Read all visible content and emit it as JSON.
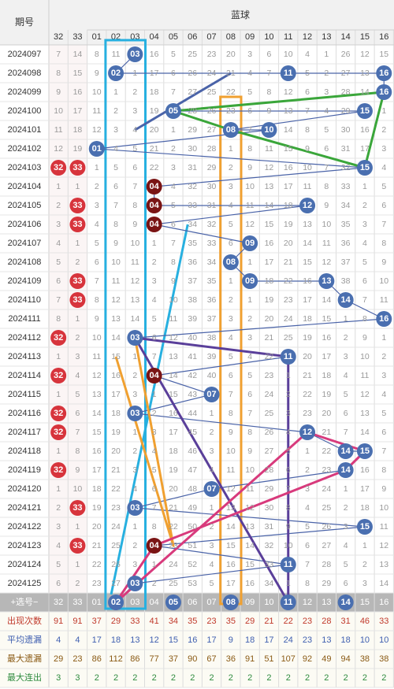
{
  "header": {
    "period_label": "期号",
    "blue_label": "蓝球",
    "columns": [
      "32",
      "33",
      "01",
      "02",
      "03",
      "04",
      "05",
      "06",
      "07",
      "08",
      "09",
      "10",
      "11",
      "12",
      "13",
      "14",
      "15",
      "16"
    ]
  },
  "chart_data": {
    "type": "table",
    "title": "",
    "highlighted_columns": [
      "32",
      "33"
    ],
    "rows": [
      {
        "period": "2024097",
        "cells": [
          "7",
          "14",
          "8",
          "11",
          "03",
          "16",
          "5",
          "25",
          "23",
          "20",
          "3",
          "6",
          "10",
          "4",
          "1",
          "26",
          "12",
          "15"
        ]
      },
      {
        "period": "2024098",
        "cells": [
          "8",
          "15",
          "9",
          "02",
          "1",
          "17",
          "6",
          "26",
          "24",
          "21",
          "4",
          "7",
          "11",
          "5",
          "2",
          "27",
          "13",
          "16"
        ]
      },
      {
        "period": "2024099",
        "cells": [
          "9",
          "16",
          "10",
          "1",
          "2",
          "18",
          "7",
          "27",
          "25",
          "22",
          "5",
          "8",
          "12",
          "6",
          "3",
          "28",
          "14",
          "16"
        ]
      },
      {
        "period": "2024100",
        "cells": [
          "10",
          "17",
          "11",
          "2",
          "3",
          "19",
          "05",
          "28",
          "26",
          "23",
          "6",
          "9",
          "13",
          "7",
          "4",
          "29",
          "15",
          "1"
        ]
      },
      {
        "period": "2024101",
        "cells": [
          "11",
          "18",
          "12",
          "3",
          "4",
          "20",
          "1",
          "29",
          "27",
          "08",
          "7",
          "10",
          "14",
          "8",
          "5",
          "30",
          "16",
          "2"
        ]
      },
      {
        "period": "2024102",
        "cells": [
          "12",
          "19",
          "01",
          "4",
          "5",
          "21",
          "2",
          "30",
          "28",
          "1",
          "8",
          "11",
          "15",
          "9",
          "6",
          "31",
          "17",
          "3"
        ]
      },
      {
        "period": "2024103",
        "cells": [
          "32",
          "33",
          "1",
          "5",
          "6",
          "22",
          "3",
          "31",
          "29",
          "2",
          "9",
          "12",
          "16",
          "10",
          "7",
          "32",
          "15",
          "4"
        ]
      },
      {
        "period": "2024104",
        "cells": [
          "1",
          "1",
          "2",
          "6",
          "7",
          "04",
          "4",
          "32",
          "30",
          "3",
          "10",
          "13",
          "17",
          "11",
          "8",
          "33",
          "1",
          "5"
        ]
      },
      {
        "period": "2024105",
        "cells": [
          "2",
          "33",
          "3",
          "7",
          "8",
          "04",
          "5",
          "33",
          "31",
          "4",
          "11",
          "14",
          "18",
          "12",
          "9",
          "34",
          "2",
          "6"
        ]
      },
      {
        "period": "2024106",
        "cells": [
          "3",
          "33",
          "4",
          "8",
          "9",
          "04",
          "6",
          "34",
          "32",
          "5",
          "12",
          "15",
          "19",
          "13",
          "10",
          "35",
          "3",
          "7"
        ]
      },
      {
        "period": "2024107",
        "cells": [
          "4",
          "1",
          "5",
          "9",
          "10",
          "1",
          "7",
          "35",
          "33",
          "6",
          "09",
          "16",
          "20",
          "14",
          "11",
          "36",
          "4",
          "8"
        ]
      },
      {
        "period": "2024108",
        "cells": [
          "5",
          "2",
          "6",
          "10",
          "11",
          "2",
          "8",
          "36",
          "34",
          "08",
          "1",
          "17",
          "21",
          "15",
          "12",
          "37",
          "5",
          "9"
        ]
      },
      {
        "period": "2024109",
        "cells": [
          "6",
          "33",
          "7",
          "11",
          "12",
          "3",
          "9",
          "37",
          "35",
          "1",
          "09",
          "18",
          "22",
          "16",
          "13",
          "38",
          "6",
          "10"
        ]
      },
      {
        "period": "2024110",
        "cells": [
          "7",
          "33",
          "8",
          "12",
          "13",
          "4",
          "10",
          "38",
          "36",
          "2",
          "1",
          "19",
          "23",
          "17",
          "14",
          "14",
          "7",
          "11"
        ]
      },
      {
        "period": "2024111",
        "cells": [
          "8",
          "1",
          "9",
          "13",
          "14",
          "5",
          "11",
          "39",
          "37",
          "3",
          "2",
          "20",
          "24",
          "18",
          "15",
          "1",
          "8",
          "16"
        ]
      },
      {
        "period": "2024112",
        "cells": [
          "32",
          "2",
          "10",
          "14",
          "03",
          "6",
          "12",
          "40",
          "38",
          "4",
          "3",
          "21",
          "25",
          "19",
          "16",
          "2",
          "9",
          "1"
        ]
      },
      {
        "period": "2024113",
        "cells": [
          "1",
          "3",
          "11",
          "15",
          "1",
          "7",
          "13",
          "41",
          "39",
          "5",
          "4",
          "22",
          "11",
          "20",
          "17",
          "3",
          "10",
          "2"
        ]
      },
      {
        "period": "2024114",
        "cells": [
          "32",
          "4",
          "12",
          "16",
          "2",
          "04",
          "14",
          "42",
          "40",
          "6",
          "5",
          "23",
          "1",
          "21",
          "18",
          "4",
          "11",
          "3"
        ]
      },
      {
        "period": "2024115",
        "cells": [
          "1",
          "5",
          "13",
          "17",
          "3",
          "1",
          "15",
          "43",
          "07",
          "7",
          "6",
          "24",
          "2",
          "22",
          "19",
          "5",
          "12",
          "4"
        ]
      },
      {
        "period": "2024116",
        "cells": [
          "32",
          "6",
          "14",
          "18",
          "03",
          "2",
          "16",
          "44",
          "1",
          "8",
          "7",
          "25",
          "3",
          "23",
          "20",
          "6",
          "13",
          "5"
        ]
      },
      {
        "period": "2024117",
        "cells": [
          "32",
          "7",
          "15",
          "19",
          "1",
          "3",
          "17",
          "45",
          "2",
          "9",
          "8",
          "26",
          "4",
          "12",
          "21",
          "7",
          "14",
          "6"
        ]
      },
      {
        "period": "2024118",
        "cells": [
          "1",
          "8",
          "16",
          "20",
          "2",
          "4",
          "18",
          "46",
          "3",
          "10",
          "9",
          "27",
          "5",
          "1",
          "22",
          "14",
          "15",
          "7"
        ]
      },
      {
        "period": "2024119",
        "cells": [
          "32",
          "9",
          "17",
          "21",
          "3",
          "5",
          "19",
          "47",
          "4",
          "11",
          "10",
          "28",
          "6",
          "2",
          "23",
          "14",
          "16",
          "8"
        ]
      },
      {
        "period": "2024120",
        "cells": [
          "1",
          "10",
          "18",
          "22",
          "4",
          "6",
          "20",
          "48",
          "07",
          "12",
          "11",
          "29",
          "7",
          "3",
          "24",
          "1",
          "17",
          "9"
        ]
      },
      {
        "period": "2024121",
        "cells": [
          "2",
          "33",
          "19",
          "23",
          "03",
          "7",
          "21",
          "49",
          "1",
          "13",
          "12",
          "30",
          "8",
          "4",
          "25",
          "2",
          "18",
          "10"
        ]
      },
      {
        "period": "2024122",
        "cells": [
          "3",
          "1",
          "20",
          "24",
          "1",
          "8",
          "22",
          "50",
          "2",
          "14",
          "13",
          "31",
          "9",
          "5",
          "26",
          "3",
          "15",
          "11"
        ]
      },
      {
        "period": "2024123",
        "cells": [
          "4",
          "33",
          "21",
          "25",
          "2",
          "04",
          "23",
          "51",
          "3",
          "15",
          "14",
          "32",
          "10",
          "6",
          "27",
          "4",
          "1",
          "12"
        ]
      },
      {
        "period": "2024124",
        "cells": [
          "5",
          "1",
          "22",
          "26",
          "3",
          "1",
          "24",
          "52",
          "4",
          "16",
          "15",
          "33",
          "11",
          "7",
          "28",
          "5",
          "2",
          "13"
        ]
      },
      {
        "period": "2024125",
        "cells": [
          "6",
          "2",
          "23",
          "27",
          "03",
          "2",
          "25",
          "53",
          "5",
          "17",
          "16",
          "34",
          "1",
          "8",
          "29",
          "6",
          "3",
          "14"
        ]
      }
    ],
    "ball_colors": {
      "red": "#d7343c",
      "blue": "#4a6fb0",
      "maroon": "#7a1414"
    },
    "select_row": {
      "label": "+选号−",
      "cells": [
        "32",
        "33",
        "01",
        "02",
        "03",
        "04",
        "05",
        "06",
        "07",
        "08",
        "09",
        "10",
        "11",
        "12",
        "13",
        "14",
        "15",
        "16"
      ],
      "selected": [
        "02",
        "05",
        "08",
        "11",
        "14"
      ]
    },
    "stat_rows": [
      {
        "label": "出现次数",
        "color": "#c0392b",
        "cells": [
          "91",
          "91",
          "37",
          "29",
          "33",
          "41",
          "34",
          "35",
          "23",
          "35",
          "29",
          "21",
          "22",
          "23",
          "28",
          "31",
          "46",
          "33"
        ]
      },
      {
        "label": "平均遗漏",
        "color": "#3f5fb0",
        "cells": [
          "4",
          "4",
          "17",
          "18",
          "13",
          "12",
          "15",
          "16",
          "17",
          "9",
          "18",
          "17",
          "24",
          "23",
          "13",
          "18",
          "10",
          "10"
        ]
      },
      {
        "label": "最大遗漏",
        "color": "#8a5a14",
        "cells": [
          "29",
          "23",
          "86",
          "112",
          "86",
          "77",
          "37",
          "90",
          "67",
          "36",
          "91",
          "51",
          "107",
          "92",
          "49",
          "94",
          "38",
          "38"
        ]
      },
      {
        "label": "最大连出",
        "color": "#2e8b3e",
        "cells": [
          "3",
          "3",
          "2",
          "2",
          "2",
          "2",
          "2",
          "2",
          "2",
          "2",
          "2",
          "2",
          "2",
          "2",
          "2",
          "2",
          "2",
          "2"
        ]
      }
    ],
    "trend_lines": [
      {
        "name": "blue",
        "color": "#4a63a8",
        "points": [
          [
            4,
            "03"
          ],
          [
            1,
            "08"
          ]
        ]
      },
      {
        "name": "green",
        "color": "#3aa63a",
        "points": [
          [
            2,
            "16"
          ],
          [
            3,
            "05"
          ],
          [
            4,
            "08"
          ],
          [
            6,
            "15"
          ],
          [
            2,
            "16"
          ]
        ]
      },
      {
        "name": "orange",
        "color": "#f0a030",
        "points": [
          [
            15,
            "03"
          ],
          [
            26,
            "05"
          ],
          [
            16,
            "02"
          ]
        ]
      },
      {
        "name": "purple",
        "color": "#5a3f9a",
        "points": [
          [
            15,
            "03"
          ],
          [
            16,
            "11"
          ],
          [
            29,
            "11"
          ],
          [
            15,
            "03"
          ]
        ]
      },
      {
        "name": "pink",
        "color": "#d83a7c",
        "points": [
          [
            20,
            "12"
          ],
          [
            21,
            "15"
          ],
          [
            22,
            "14"
          ],
          [
            26,
            "04"
          ],
          [
            29,
            "02"
          ],
          [
            20,
            "12"
          ]
        ]
      }
    ]
  }
}
